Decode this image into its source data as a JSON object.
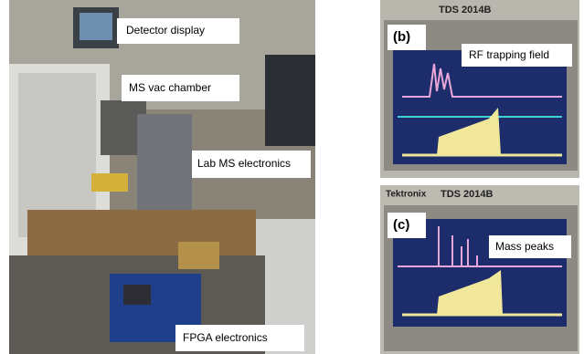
{
  "left_photo": {
    "labels": [
      "Detector display",
      "MS vac chamber",
      "Lab MS electronics",
      "FPGA electronics"
    ]
  },
  "right_panels": [
    {
      "model": "TDS 2014B",
      "panel_label": "(b)",
      "caption": "RF trapping field"
    },
    {
      "brand": "Tektronix",
      "model": "TDS 2014B",
      "panel_label": "(c)",
      "caption": "Mass peaks"
    }
  ]
}
